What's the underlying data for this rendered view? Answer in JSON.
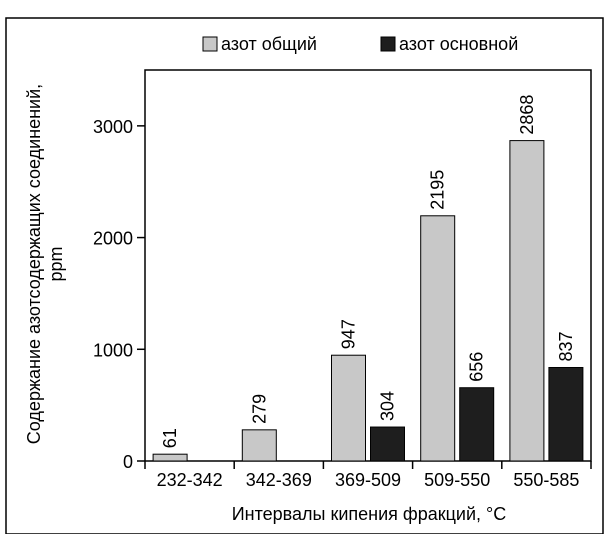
{
  "chart_data": {
    "type": "bar",
    "title": "",
    "xlabel": "Интервалы кипения фракций, °C",
    "ylabel_line1": "Содержание азотсодержащих соединений,",
    "ylabel_line2": "ppm",
    "categories": [
      "232-342",
      "342-369",
      "369-509",
      "509-550",
      "550-585"
    ],
    "series": [
      {
        "name": "азот общий",
        "values": [
          61,
          279,
          947,
          2195,
          2868
        ],
        "color": "#c8c8c8"
      },
      {
        "name": "азот основной",
        "values": [
          null,
          null,
          304,
          656,
          837
        ],
        "color": "#1e1e1e"
      }
    ],
    "data_labels": [
      [
        "61",
        "279",
        "947",
        "2195",
        "2868"
      ],
      [
        "",
        "",
        "304",
        "656",
        "837"
      ]
    ],
    "yticks": [
      0,
      1000,
      2000,
      3000
    ],
    "ylim": [
      0,
      3500
    ],
    "grid": false,
    "legend_position": "top"
  }
}
